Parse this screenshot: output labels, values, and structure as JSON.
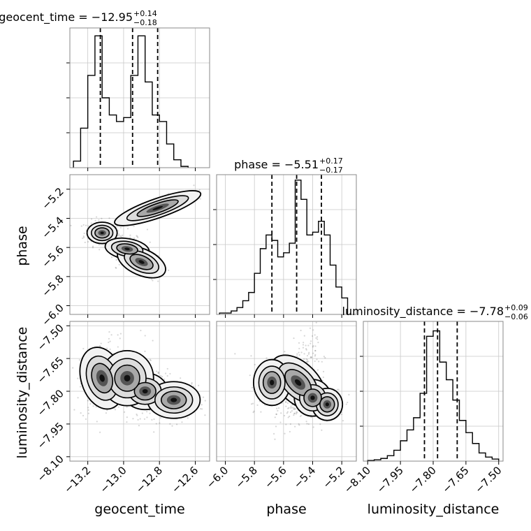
{
  "chart_data": {
    "type": "corner",
    "parameters": [
      {
        "name": "geocent_time",
        "axis_label": "geocent_time",
        "range": [
          -13.3,
          -12.52
        ],
        "ticks": [
          -13.2,
          -13.0,
          -12.8,
          -12.6
        ],
        "tick_labels": [
          "−13.2",
          "−13.0",
          "−12.8",
          "−12.6"
        ],
        "title_main": "geocent_time = −12.95",
        "title_upper": "+0.14",
        "title_lower": "−0.18",
        "quantiles": [
          -13.13,
          -12.95,
          -12.81
        ],
        "histogram": {
          "bin_edges": [
            -13.28,
            -13.24,
            -13.2,
            -13.16,
            -13.12,
            -13.08,
            -13.04,
            -13.0,
            -12.96,
            -12.92,
            -12.88,
            -12.84,
            -12.8,
            -12.76,
            -12.72,
            -12.68,
            -12.64
          ],
          "counts": [
            0.5,
            3.0,
            7.0,
            10.0,
            5.3,
            4.0,
            3.5,
            3.8,
            7.0,
            10.0,
            6.5,
            4.0,
            3.5,
            1.8,
            0.6,
            0.1
          ],
          "ylim": [
            0,
            10.6
          ]
        }
      },
      {
        "name": "phase",
        "axis_label": "phase",
        "range": [
          -6.06,
          -5.1
        ],
        "ticks": [
          -6.0,
          -5.8,
          -5.6,
          -5.4,
          -5.2
        ],
        "tick_labels": [
          "−6.0",
          "−5.8",
          "−5.6",
          "−5.4",
          "−5.2"
        ],
        "title_main": "phase = −5.51",
        "title_upper": "+0.17",
        "title_lower": "−0.17",
        "quantiles": [
          -5.68,
          -5.51,
          -5.34
        ],
        "histogram": {
          "bin_edges": [
            -6.04,
            -6.0,
            -5.96,
            -5.92,
            -5.88,
            -5.84,
            -5.8,
            -5.76,
            -5.72,
            -5.68,
            -5.64,
            -5.6,
            -5.56,
            -5.52,
            -5.48,
            -5.44,
            -5.4,
            -5.36,
            -5.32,
            -5.28,
            -5.24,
            -5.2,
            -5.16
          ],
          "counts": [
            0.1,
            0.1,
            0.25,
            0.5,
            1.0,
            1.6,
            3.0,
            4.8,
            5.8,
            5.4,
            4.2,
            4.5,
            5.2,
            9.8,
            8.4,
            5.8,
            6.0,
            6.8,
            5.8,
            3.6,
            2.0,
            1.2
          ],
          "ylim": [
            0,
            10.2
          ]
        }
      },
      {
        "name": "luminosity_distance",
        "axis_label": "luminosity_distance",
        "range": [
          -8.12,
          -7.48
        ],
        "ticks": [
          -8.1,
          -7.95,
          -7.8,
          -7.65,
          -7.5
        ],
        "tick_labels": [
          "−8.10",
          "−7.95",
          "−7.80",
          "−7.65",
          "−7.50"
        ],
        "title_main": "luminosity_distance = −7.78",
        "title_upper": "+0.09",
        "title_lower": "−0.06",
        "quantiles": [
          -7.84,
          -7.78,
          -7.69
        ],
        "histogram": {
          "bin_edges": [
            -8.1,
            -8.07,
            -8.04,
            -8.01,
            -7.98,
            -7.95,
            -7.92,
            -7.89,
            -7.86,
            -7.83,
            -7.8,
            -7.77,
            -7.74,
            -7.71,
            -7.68,
            -7.65,
            -7.62,
            -7.59,
            -7.56,
            -7.53,
            -7.5
          ],
          "counts": [
            0.05,
            0.1,
            0.2,
            0.4,
            0.8,
            1.5,
            2.3,
            3.2,
            5.0,
            9.2,
            9.6,
            7.3,
            6.0,
            4.5,
            3.0,
            2.1,
            1.3,
            0.6,
            0.3,
            0.15
          ],
          "ylim": [
            0,
            10.3
          ]
        }
      }
    ],
    "joint": [
      {
        "x": "geocent_time",
        "y": "phase",
        "modes": [
          {
            "mean": [
              -13.12,
              -5.5
            ],
            "sd": [
              0.04,
              0.035
            ],
            "rho": 0,
            "weight": 2.2
          },
          {
            "mean": [
              -12.98,
              -5.61
            ],
            "sd": [
              0.05,
              0.035
            ],
            "rho": -0.3,
            "weight": 1.0
          },
          {
            "mean": [
              -12.9,
              -5.7
            ],
            "sd": [
              0.05,
              0.05
            ],
            "rho": -0.6,
            "weight": 1.6
          },
          {
            "mean": [
              -12.81,
              -5.33
            ],
            "sd": [
              0.08,
              0.045
            ],
            "rho": 0.85,
            "weight": 1.6
          }
        ]
      },
      {
        "x": "geocent_time",
        "y": "luminosity_distance",
        "modes": [
          {
            "mean": [
              -13.12,
              -7.74
            ],
            "sd": [
              0.05,
              0.07
            ],
            "rho": 0.2,
            "weight": 1.5
          },
          {
            "mean": [
              -12.88,
              -7.8
            ],
            "sd": [
              0.06,
              0.04
            ],
            "rho": 0,
            "weight": 1.4
          },
          {
            "mean": [
              -12.72,
              -7.84
            ],
            "sd": [
              0.07,
              0.04
            ],
            "rho": 0,
            "weight": 0.8
          },
          {
            "mean": [
              -12.98,
              -7.74
            ],
            "sd": [
              0.07,
              0.06
            ],
            "rho": 0,
            "weight": 0.8
          }
        ]
      },
      {
        "x": "phase",
        "y": "luminosity_distance",
        "modes": [
          {
            "mean": [
              -5.5,
              -7.76
            ],
            "sd": [
              0.05,
              0.08
            ],
            "rho": 0.5,
            "weight": 1.8
          },
          {
            "mean": [
              -5.4,
              -7.83
            ],
            "sd": [
              0.06,
              0.04
            ],
            "rho": 0,
            "weight": 1.0
          },
          {
            "mean": [
              -5.68,
              -7.76
            ],
            "sd": [
              0.06,
              0.05
            ],
            "rho": 0,
            "weight": 0.7
          },
          {
            "mean": [
              -5.3,
              -7.86
            ],
            "sd": [
              0.05,
              0.035
            ],
            "rho": 0,
            "weight": 0.6
          }
        ]
      }
    ],
    "grid": true
  }
}
